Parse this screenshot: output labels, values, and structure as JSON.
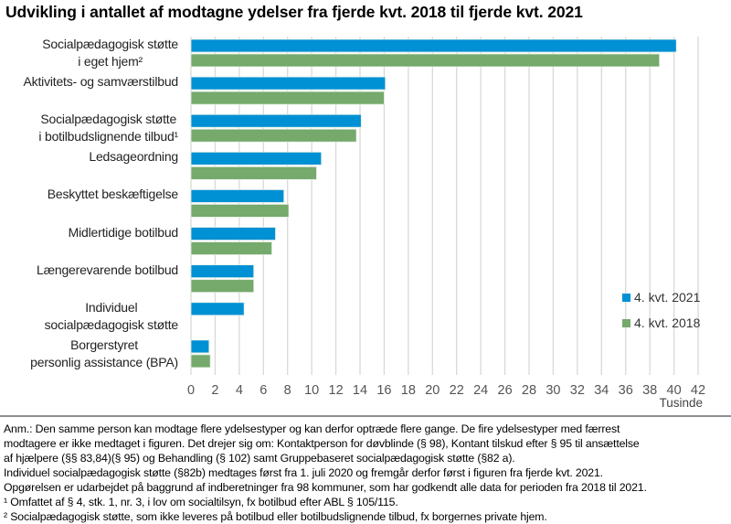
{
  "title": "Udvikling i antallet af modtagne ydelser fra fjerde kvt. 2018 til fjerde kvt. 2021",
  "chart_data": {
    "type": "bar",
    "orientation": "horizontal",
    "title": "Udvikling i antallet af modtagne ydelser fra fjerde kvt. 2018 til fjerde kvt. 2021",
    "xlabel": "Tusinde",
    "ylabel": "",
    "xlim": [
      0,
      42
    ],
    "xticks": [
      0,
      2,
      4,
      6,
      8,
      10,
      12,
      14,
      16,
      18,
      20,
      22,
      24,
      26,
      28,
      30,
      32,
      34,
      36,
      38,
      40,
      42
    ],
    "grid": "vertical",
    "legend_position": "right",
    "categories": [
      [
        "Socialpædagogisk støtte",
        "i eget hjem²"
      ],
      [
        "Aktivitets- og samværstilbud"
      ],
      [
        "Socialpædagogisk støtte",
        "i botilbudslignende tilbud¹"
      ],
      [
        "Ledsageordning"
      ],
      [
        "Beskyttet beskæftigelse"
      ],
      [
        "Midlertidige botilbud"
      ],
      [
        "Længerevarende botilbud"
      ],
      [
        "Individuel",
        "socialpædagogisk støtte"
      ],
      [
        "Borgerstyret",
        "personlig assistance (BPA)"
      ]
    ],
    "series": [
      {
        "name": "4. kvt. 2021",
        "color": "#0090d4",
        "values": [
          40.2,
          16.1,
          14.1,
          10.8,
          7.7,
          7.0,
          5.2,
          4.4,
          1.5
        ]
      },
      {
        "name": "4. kvt. 2018",
        "color": "#76a96c",
        "values": [
          38.8,
          16.0,
          13.7,
          10.4,
          8.1,
          6.7,
          5.2,
          null,
          1.6
        ]
      }
    ]
  },
  "notes": [
    "Anm.: Den samme person kan modtage flere ydelsestyper og kan derfor optræde flere gange. De fire ydelsestyper med færrest",
    "modtagere er ikke medtaget i figuren. Det drejer sig om: Kontaktperson for døvblinde (§ 98), Kontant tilskud efter § 95 til ansættelse",
    "af hjælpere (§§ 83,84)(§ 95) og Behandling (§ 102) samt Gruppebaseret socialpædagogisk støtte (§82 a).",
    "Individuel socialpædagogisk støtte (§82b) medtages først fra 1. juli 2020 og fremgår derfor først i figuren fra fjerde kvt. 2021.",
    "Opgørelsen er udarbejdet på baggrund af indberetninger fra 98 kommuner, som har godkendt alle data for perioden fra 2018 til 2021.",
    "¹ Omfattet af § 4, stk. 1, nr. 3, i lov om socialtilsyn, fx botilbud efter ABL § 105/115.",
    "² Socialpædagogisk støtte, som ikke leveres på botilbud eller botilbudslignende tilbud, fx borgernes private hjem."
  ]
}
